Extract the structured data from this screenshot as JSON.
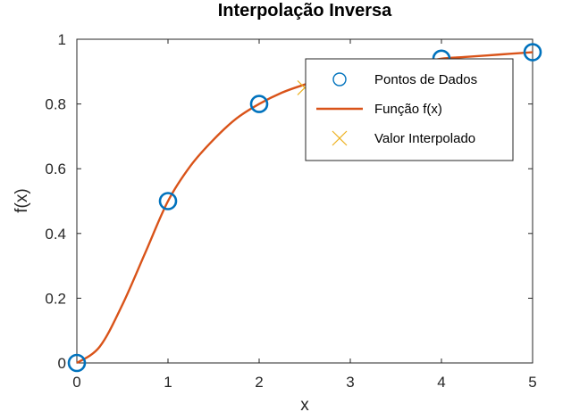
{
  "chart_data": {
    "type": "line",
    "title": "Interpolação Inversa",
    "xlabel": "x",
    "ylabel": "f(x)",
    "xlim": [
      0,
      5
    ],
    "ylim": [
      0,
      1
    ],
    "x_ticks": [
      "0",
      "1",
      "2",
      "3",
      "4",
      "5"
    ],
    "y_ticks": [
      "0",
      "0.2",
      "0.4",
      "0.6",
      "0.8",
      "1"
    ],
    "grid": false,
    "legend_position": "top-right",
    "series": [
      {
        "name": "Pontos de Dados",
        "kind": "markers",
        "marker": "circle",
        "color": "#0072BD",
        "x": [
          0,
          1,
          2,
          4,
          5
        ],
        "y": [
          0,
          0.5,
          0.8,
          0.94,
          0.96
        ]
      },
      {
        "name": "Função f(x)",
        "kind": "line",
        "color": "#D95319",
        "x": [
          0,
          0.25,
          0.5,
          0.75,
          1,
          1.25,
          1.5,
          1.75,
          2,
          2.25,
          2.5,
          2.75,
          3,
          3.25,
          3.5,
          3.75,
          4,
          4.25,
          4.5,
          4.75,
          5
        ],
        "y": [
          0,
          0.05,
          0.18,
          0.34,
          0.5,
          0.61,
          0.69,
          0.755,
          0.8,
          0.835,
          0.86,
          0.88,
          0.895,
          0.907,
          0.917,
          0.925,
          0.94,
          0.945,
          0.95,
          0.955,
          0.96
        ]
      },
      {
        "name": "Valor Interpolado",
        "kind": "markers",
        "marker": "x",
        "color": "#EDB120",
        "x": [
          2.5
        ],
        "y": [
          0.85
        ]
      }
    ]
  }
}
